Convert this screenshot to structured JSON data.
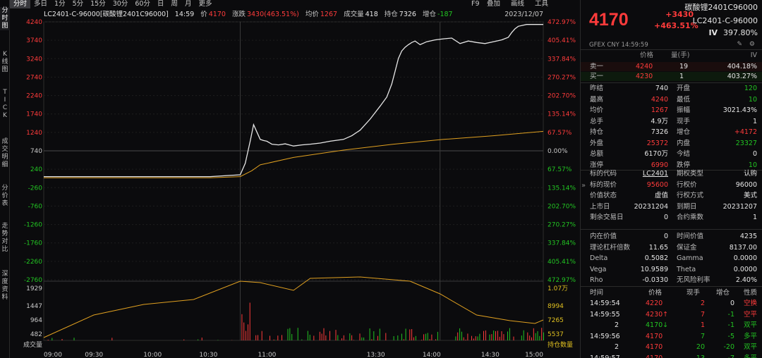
{
  "left_tabs": [
    "分\n时\n图",
    "K\n线\n图",
    "T\nI\nC\nK",
    "成\n交\n明\n细",
    "分\n价\n表",
    "走\n势\n对\n比",
    "深\n度\n资\n料"
  ],
  "toolbar": {
    "periods": [
      "分时",
      "多日",
      "1分",
      "5分",
      "15分",
      "30分",
      "60分",
      "日",
      "周",
      "月",
      "更多"
    ],
    "active": "分时",
    "right": [
      "F9",
      "叠加",
      "画线",
      "工具"
    ]
  },
  "info": {
    "name": "LC2401-C-96000[碳酸锂2401C96000]",
    "time": "14:59",
    "price_label": "价",
    "price": "4170",
    "change_label": "涨跌",
    "change": "3430(463.51%)",
    "avg_label": "均价",
    "avg": "1267",
    "vol_label": "成交量",
    "vol": "418",
    "oi_label": "持仓",
    "oi": "7326",
    "oi_chg_label": "增仓",
    "oi_chg": "-187",
    "date": "2023/12/07"
  },
  "chart_data": {
    "type": "line",
    "price_axis": [
      "4240",
      "3740",
      "3240",
      "2740",
      "2240",
      "1740",
      "1240",
      "740",
      "240",
      "-260",
      "-760",
      "-1260",
      "-1760",
      "-2260",
      "-2760"
    ],
    "pct_axis": [
      "472.97%",
      "405.41%",
      "337.84%",
      "270.27%",
      "202.70%",
      "135.14%",
      "67.57%",
      "0.00%",
      "67.57%",
      "135.14%",
      "202.70%",
      "270.27%",
      "337.84%",
      "405.41%",
      "472.97%"
    ],
    "vol_axis_left": [
      "1929",
      "1447",
      "964",
      "482",
      "成交量"
    ],
    "vol_axis_right": [
      "1.07万",
      "8994",
      "7265",
      "5537",
      "持仓数量"
    ],
    "x_ticks": [
      "09:00",
      "09:30",
      "10:00",
      "10:30",
      "11:00",
      "13:30",
      "14:00",
      "14:30",
      "15:00"
    ],
    "ylim": [
      -2760,
      4240
    ],
    "prev_close": 740,
    "series": [
      {
        "name": "价",
        "color": "#e6e6e6",
        "x": [
          0,
          60,
          100,
          118,
          121,
          124,
          126,
          128,
          130,
          132,
          134,
          137,
          141,
          145,
          150,
          155,
          160,
          166,
          172,
          180,
          185,
          190,
          196,
          202,
          206,
          209,
          211,
          213,
          215,
          217,
          219,
          221,
          223,
          226,
          230,
          235,
          240,
          245,
          250,
          255,
          260,
          265,
          270,
          275,
          279,
          281,
          283,
          285,
          290,
          295,
          300
        ],
        "y": [
          40,
          40,
          40,
          90,
          400,
          1000,
          1450,
          1250,
          1050,
          1020,
          1000,
          920,
          900,
          930,
          870,
          900,
          920,
          950,
          1000,
          1050,
          1150,
          1300,
          1600,
          1950,
          2200,
          2550,
          2900,
          3250,
          3450,
          3550,
          3620,
          3680,
          3720,
          3620,
          3700,
          3750,
          3780,
          3800,
          3650,
          3720,
          3680,
          3650,
          3700,
          3750,
          3820,
          3950,
          4050,
          4120,
          4170,
          4170,
          4170
        ]
      },
      {
        "name": "均价",
        "color": "#e0a020",
        "x": [
          0,
          100,
          118,
          125,
          130,
          150,
          180,
          210,
          240,
          270,
          300
        ],
        "y": [
          10,
          10,
          40,
          200,
          360,
          560,
          760,
          920,
          1050,
          1150,
          1267
        ]
      }
    ],
    "volume_bars": "sparse, concentrated after 10:30",
    "open_interest_line": "rises 09:00-10:30, peaks ~11:00, declines after 13:30"
  },
  "right_panel": {
    "top_name": "碳酸锂2401C96000",
    "price": "4170",
    "change": "+3430",
    "change_pct": "+463.51%",
    "code": "LC2401-C-96000",
    "iv_label": "IV",
    "iv": "397.80%",
    "sub": "GFEX  CNY   14:59:59",
    "orderbook_header": [
      "价格",
      "量(手)",
      "IV"
    ],
    "orderbook": [
      {
        "label": "卖一",
        "price": "4240",
        "vol": "19",
        "iv": "404.18%"
      },
      {
        "label": "买一",
        "price": "4230",
        "vol": "1",
        "iv": "403.27%"
      }
    ],
    "stats": [
      [
        "昨结",
        "740",
        "开盘",
        "120"
      ],
      [
        "最高",
        "4240",
        "最低",
        "10"
      ],
      [
        "均价",
        "1267",
        "振幅",
        "3021.43%"
      ],
      [
        "总手",
        "4.9万",
        "现手",
        "1"
      ],
      [
        "持仓",
        "7326",
        "增仓",
        "+4172"
      ],
      [
        "外盘",
        "25372",
        "内盘",
        "23327"
      ],
      [
        "总额",
        "6170万",
        "今结",
        "0"
      ],
      [
        "涨停",
        "6990",
        "跌停",
        "10"
      ]
    ],
    "underlying": [
      [
        "标的代码",
        "LC2401",
        "期权类型",
        "认购"
      ],
      [
        "标的现价",
        "95600",
        "行权价",
        "96000"
      ],
      [
        "价值状态",
        "虚值",
        "行权方式",
        "美式"
      ],
      [
        "上市日",
        "20231204",
        "到期日",
        "20231207"
      ],
      [
        "剩余交易日",
        "0",
        "合约乘数",
        "1"
      ]
    ],
    "greeks": [
      [
        "内在价值",
        "0",
        "时间价值",
        "4235"
      ],
      [
        "理论杠杆倍数",
        "11.65",
        "保证金",
        "8137.00"
      ],
      [
        "Delta",
        "0.5082",
        "Gamma",
        "0.0000"
      ],
      [
        "Vega",
        "10.9589",
        "Theta",
        "0.0000"
      ],
      [
        "Rho",
        "-0.0330",
        "无风险利率",
        "2.40%"
      ]
    ],
    "ticks_header": [
      "时间",
      "价格",
      "现手",
      "增仓",
      "性质"
    ],
    "ticks": [
      [
        "14:59:54",
        "4220",
        "2",
        "0",
        "空换"
      ],
      [
        "14:59:55",
        "4230↑",
        "7",
        "-1",
        "空平"
      ],
      [
        "2",
        "4170↓",
        "1",
        "-1",
        "双平"
      ],
      [
        "14:59:56",
        "4170",
        "7",
        "-5",
        "多平"
      ],
      [
        "2",
        "4170",
        "20",
        "-20",
        "双平"
      ],
      [
        "14:59:57",
        "4170",
        "13",
        "-7",
        "多平"
      ]
    ]
  }
}
